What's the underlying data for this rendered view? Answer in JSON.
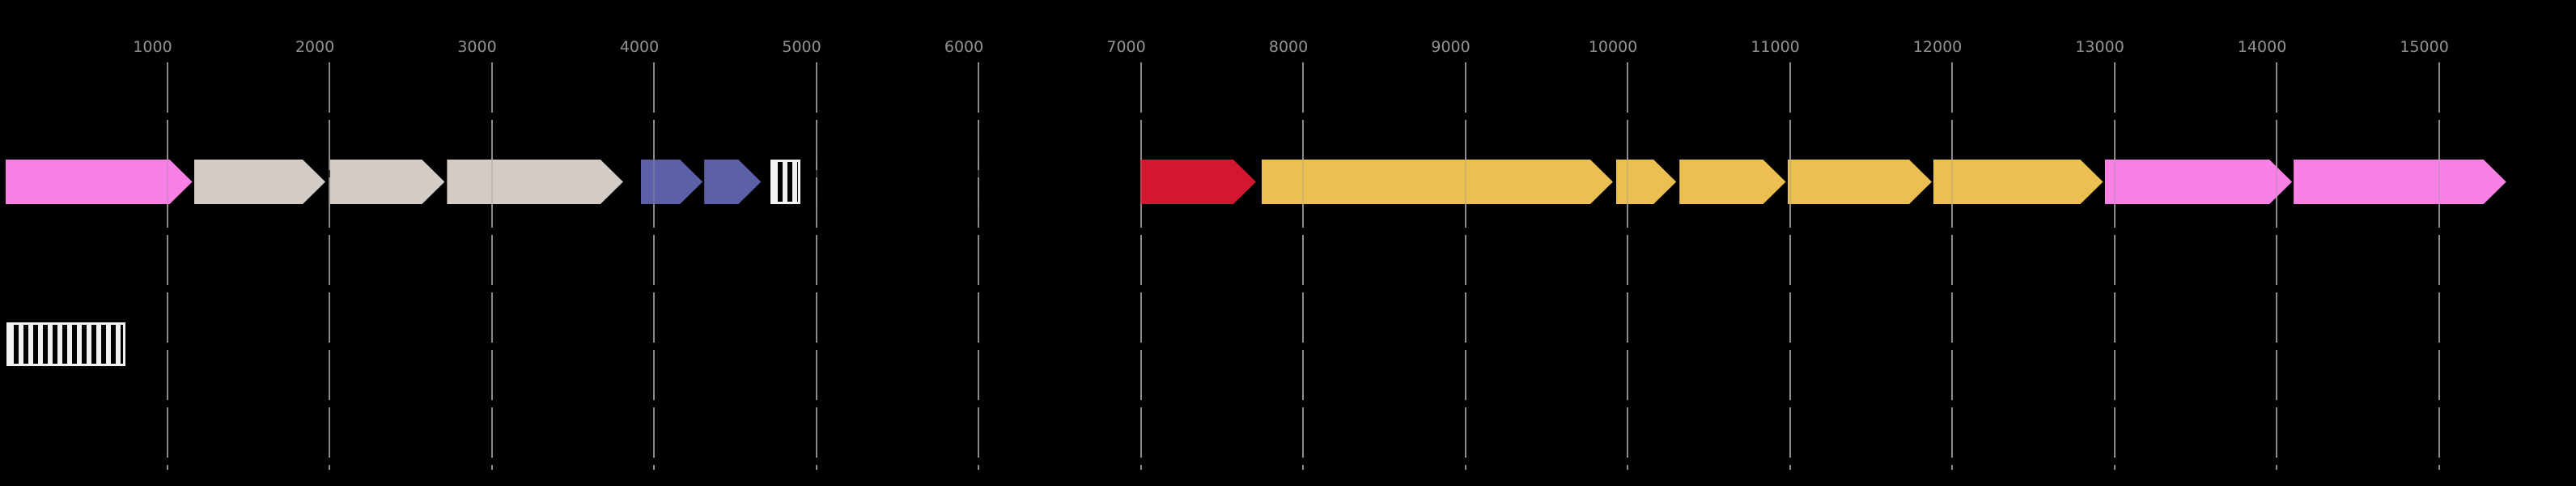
{
  "figure": {
    "background": "#000000",
    "axis": {
      "unit": "bp",
      "range": {
        "min": -30,
        "max": 15845
      },
      "tick_step": 1000,
      "tick_values": [
        1000,
        2000,
        3000,
        4000,
        5000,
        6000,
        7000,
        8000,
        9000,
        10000,
        11000,
        12000,
        13000,
        14000,
        15000
      ],
      "tick_labels": [
        "1000",
        "2000",
        "3000",
        "4000",
        "5000",
        "6000",
        "7000",
        "8000",
        "9000",
        "10000",
        "11000",
        "12000",
        "13000",
        "14000",
        "15000"
      ],
      "label_color": "#929292",
      "line_color": "#8a8a8a"
    },
    "palette": {
      "pink": "#fa80e6",
      "tan": "#d3ccc6",
      "blue": "#5c60a6",
      "red": "#d3172e",
      "gold": "#ecbf53",
      "hatch_fill": "#f2f2f2",
      "hatch_stripe": "#000000"
    },
    "tracks": {
      "main": {
        "features": [
          {
            "name": "gene-arrow-1",
            "shape": "arrow",
            "color": "pink",
            "start": 5,
            "end": 1155,
            "direction": "right"
          },
          {
            "name": "gene-arrow-2",
            "shape": "arrow",
            "color": "tan",
            "start": 1165,
            "end": 1975,
            "direction": "right"
          },
          {
            "name": "gene-arrow-3",
            "shape": "arrow",
            "color": "tan",
            "start": 2005,
            "end": 2710,
            "direction": "right"
          },
          {
            "name": "gene-arrow-4",
            "shape": "arrow",
            "color": "tan",
            "start": 2725,
            "end": 3810,
            "direction": "right"
          },
          {
            "name": "gene-arrow-5",
            "shape": "arrow",
            "color": "blue",
            "start": 3920,
            "end": 4300,
            "direction": "right"
          },
          {
            "name": "gene-arrow-6",
            "shape": "arrow",
            "color": "blue",
            "start": 4310,
            "end": 4660,
            "direction": "right"
          },
          {
            "name": "hatched-feature-1",
            "shape": "hatched-box",
            "start": 4720,
            "end": 4905
          },
          {
            "name": "gene-arrow-7",
            "shape": "arrow",
            "color": "red",
            "start": 6995,
            "end": 7710,
            "direction": "right"
          },
          {
            "name": "gene-arrow-8",
            "shape": "arrow",
            "color": "gold",
            "start": 7745,
            "end": 9910,
            "direction": "right"
          },
          {
            "name": "gene-arrow-9",
            "shape": "arrow",
            "color": "gold",
            "start": 9930,
            "end": 10300,
            "direction": "right"
          },
          {
            "name": "gene-arrow-10",
            "shape": "arrow",
            "color": "gold",
            "start": 10320,
            "end": 10975,
            "direction": "right"
          },
          {
            "name": "gene-arrow-11",
            "shape": "arrow",
            "color": "gold",
            "start": 10985,
            "end": 11875,
            "direction": "right"
          },
          {
            "name": "gene-arrow-12",
            "shape": "arrow",
            "color": "gold",
            "start": 11885,
            "end": 12930,
            "direction": "right"
          },
          {
            "name": "gene-arrow-13",
            "shape": "arrow",
            "color": "pink",
            "start": 12940,
            "end": 14095,
            "direction": "right"
          },
          {
            "name": "gene-arrow-14",
            "shape": "arrow",
            "color": "pink",
            "start": 14105,
            "end": 15415,
            "direction": "right"
          }
        ]
      },
      "lower": {
        "features": [
          {
            "name": "hatched-feature-2",
            "shape": "hatched-box",
            "start": 10,
            "end": 745
          }
        ]
      }
    }
  }
}
